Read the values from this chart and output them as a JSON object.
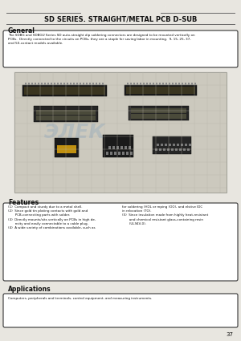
{
  "bg_color": "#e8e6e0",
  "title": "SD SERIES. STRAIGHT/METAL PCB D-SUB",
  "title_fontsize": 6.0,
  "title_color": "#111111",
  "page_number": "37",
  "general_heading": "General",
  "general_text": "The SDBG and SDBGU Series SD auto-straight dip soldering connectors are designed to be mounted vertically on\nPCBs.  Directly connected to the circuits on PCBs, they are a staple for saving labor in mounting.  9, 15, 25, 37,\nand 50-contact models available.",
  "features_heading": "Features",
  "features_text_left": "(1)  Compact and sturdy due to a metal shell.\n(2)  Since gold tin plating contacts with gold and\n       PCB-connecting parts with solder.\n(3)  Directly mounts/sits vertically on PCBs in high de-\n       nsity and easily connectable to a cable plug.\n(4)  A wide variety of combinations available, such as",
  "features_text_right": "for soldering (HOL or mping (OO), and elstive IDC\nin relocation (TO).\n(5)  Since insulation made from highly heat-resistant\n       and chemical resistant glass-containing resin\n       (UL94V-0).",
  "applications_heading": "Applications",
  "applications_text": "Computers, peripherals and terminals, control equipment, and measuring instruments.",
  "header_line_color": "#666666",
  "box_border_color": "#333333",
  "image_bg": "#ccc9be",
  "grid_color": "#b0ad a4"
}
